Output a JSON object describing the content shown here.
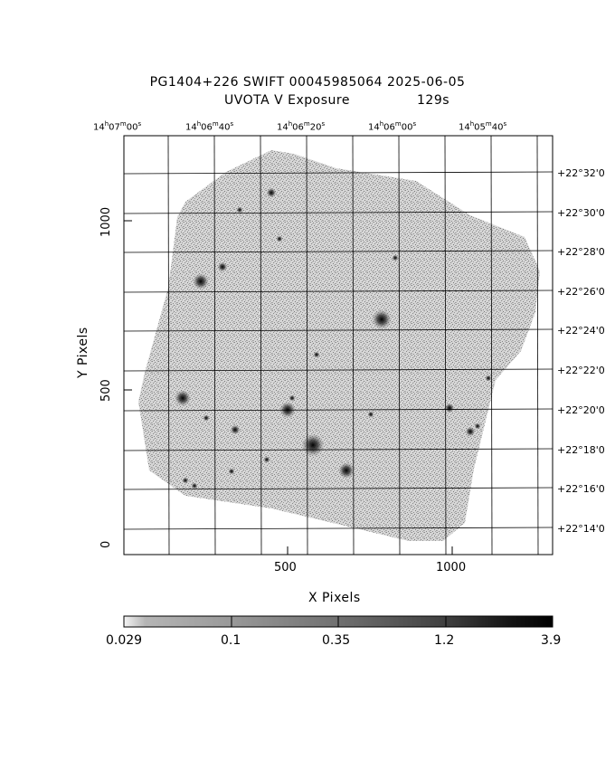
{
  "header": {
    "title_line1": "PG1404+226 SWIFT 00045985064 2025-06-05",
    "title_line2_left": "UVOTA V Exposure",
    "title_line2_right": "129s"
  },
  "axes": {
    "xlabel": "X Pixels",
    "ylabel": "Y Pixels",
    "x_ticks": [
      "500",
      "1000"
    ],
    "y_ticks": [
      "0",
      "500",
      "1000"
    ],
    "ra_ticks": [
      {
        "h": "14",
        "m": "07",
        "s": "00"
      },
      {
        "h": "14",
        "m": "06",
        "s": "40"
      },
      {
        "h": "14",
        "m": "06",
        "s": "20"
      },
      {
        "h": "14",
        "m": "06",
        "s": "00"
      },
      {
        "h": "14",
        "m": "05",
        "s": "40"
      }
    ],
    "dec_ticks": [
      "+22°32'0",
      "+22°30'0",
      "+22°28'0",
      "+22°26'0",
      "+22°24'0",
      "+22°22'0",
      "+22°20'0",
      "+22°18'0",
      "+22°16'0",
      "+22°14'0"
    ]
  },
  "colorbar": {
    "ticks": [
      "0.029",
      "0.1",
      "0.35",
      "1.2",
      "3.9"
    ],
    "scale": "log"
  },
  "image": {
    "description_colors": {
      "background": "#ffffff",
      "noise": "#9a9a9a",
      "stars": "#111111"
    }
  }
}
